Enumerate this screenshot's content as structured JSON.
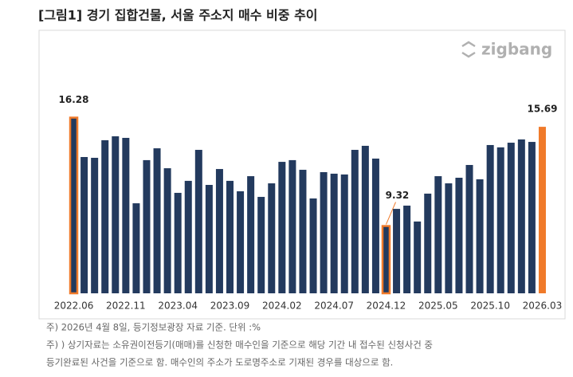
{
  "chart_data": {
    "type": "bar",
    "title": "[그림1] 경기 집합건물, 서울 주소지 매수 비중 추이",
    "brand": "zigbang",
    "categories": [
      "2022.06",
      null,
      null,
      null,
      null,
      "2022.11",
      null,
      null,
      null,
      null,
      "2023.04",
      null,
      null,
      null,
      null,
      "2023.09",
      null,
      null,
      null,
      null,
      "2024.02",
      null,
      null,
      null,
      null,
      "2024.07",
      null,
      null,
      null,
      null,
      "2024.12",
      null,
      null,
      null,
      null,
      "2025.05",
      null,
      null,
      null,
      null,
      "2025.10",
      null,
      null,
      null,
      null,
      "2026.03"
    ],
    "values": [
      16.28,
      13.75,
      13.7,
      14.83,
      15.08,
      14.98,
      10.78,
      13.55,
      14.31,
      13.03,
      11.45,
      12.22,
      14.21,
      11.96,
      12.98,
      12.22,
      11.55,
      12.52,
      11.19,
      12.06,
      13.44,
      13.55,
      12.93,
      11.09,
      12.78,
      12.68,
      12.63,
      14.21,
      14.47,
      13.65,
      9.32,
      10.42,
      10.63,
      9.61,
      11.4,
      12.52,
      12.06,
      12.42,
      13.24,
      12.32,
      14.52,
      14.37,
      14.67,
      14.88,
      14.72,
      15.69
    ],
    "color": "#233a5e",
    "highlight_color": "#f07a2a",
    "outlined": [
      0,
      30
    ],
    "filled_highlight": [
      45
    ],
    "labeled": [
      0,
      30,
      45
    ],
    "ylim": [
      5,
      17
    ],
    "notes": [
      "주) 2026년 4월 8일, 등기정보광장 자료 기준. 단위 :%",
      "주) ) 상기자료는 소유권이전등기(매매)를 신청한 매수인을 기준으로 해당 기간 내 접수된 신청사건 중",
      "등기완료된 사건을 기준으로 함. 매수인의 주소가 도로명주소로 기재된 경우를 대상으로 함."
    ]
  }
}
